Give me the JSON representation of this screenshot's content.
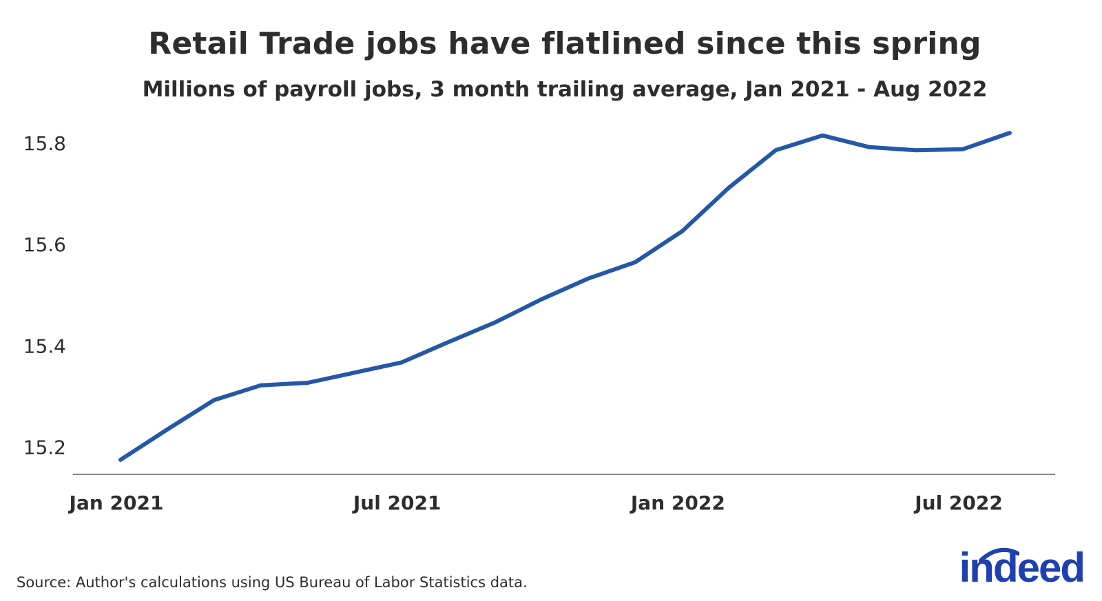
{
  "chart_data": {
    "type": "line",
    "title": "Retail Trade jobs have flatlined since this spring",
    "subtitle": "Millions of payroll jobs, 3 month trailing average, Jan 2021 - Aug 2022",
    "x": [
      "2021-01",
      "2021-02",
      "2021-03",
      "2021-04",
      "2021-05",
      "2021-06",
      "2021-07",
      "2021-08",
      "2021-09",
      "2021-10",
      "2021-11",
      "2021-12",
      "2022-01",
      "2022-02",
      "2022-03",
      "2022-04",
      "2022-05",
      "2022-06",
      "2022-07",
      "2022-08"
    ],
    "series": [
      {
        "values": [
          15.175,
          15.235,
          15.293,
          15.322,
          15.327,
          15.347,
          15.367,
          15.407,
          15.446,
          15.492,
          15.533,
          15.565,
          15.626,
          15.712,
          15.786,
          15.815,
          15.792,
          15.786,
          15.788,
          15.82
        ],
        "color": "#2557a7"
      }
    ],
    "x_ticks": [
      {
        "label": "Jan 2021",
        "index": 0
      },
      {
        "label": "Jul 2021",
        "index": 6
      },
      {
        "label": "Jan 2022",
        "index": 12
      },
      {
        "label": "Jul 2022",
        "index": 18
      }
    ],
    "y_ticks": [
      15.2,
      15.4,
      15.6,
      15.8
    ],
    "ylim": [
      15.145,
      15.865
    ],
    "grid": false,
    "legend": "none"
  },
  "source": "Source: Author's calculations using US Bureau of Labor Statistics data.",
  "logo_text": "indeed",
  "colors": {
    "line": "#2557a7",
    "axis": "#888888",
    "text": "#2d2d2d",
    "brand": "#1e40b0"
  }
}
